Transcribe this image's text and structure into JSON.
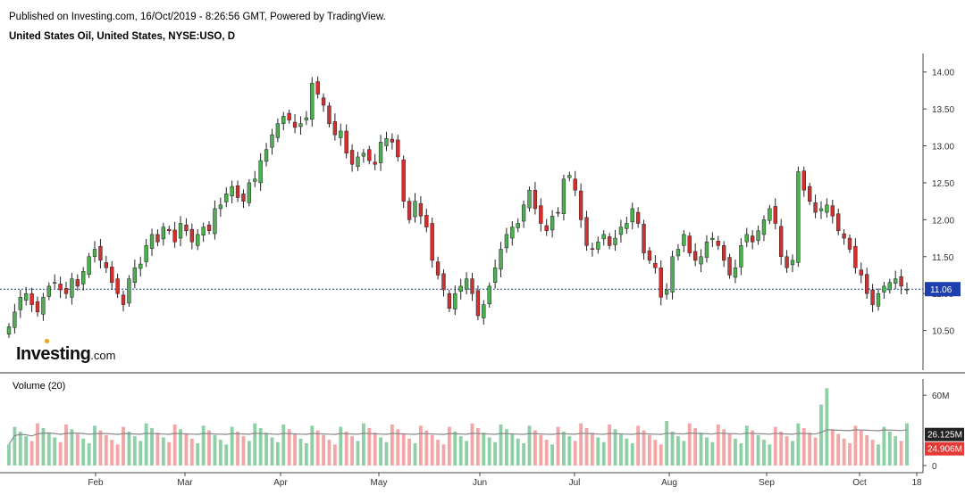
{
  "header": {
    "published": "Published on Investing.com, 16/Oct/2019 - 8:26:56 GMT, Powered by TradingView.",
    "symbol": "United States Oil, United States, NYSE:USO, D"
  },
  "logo": {
    "name": "Investing",
    "tld": ".com"
  },
  "volume": {
    "title": "Volume (20)",
    "ma_label": "26.125M",
    "last_label": "24.906M",
    "axis_ticks": [
      "60M",
      "0"
    ]
  },
  "colors": {
    "up": "#4caf50",
    "down": "#d32f2f",
    "up_vol": "#8fcfa5",
    "down_vol": "#f4a6a6",
    "last_line": "#1e3a8a",
    "last_box": "#1e40af",
    "ma_line": "#888888"
  },
  "chart_data": {
    "type": "candlestick",
    "title": "United States Oil, United States, NYSE:USO, D",
    "price_axis": {
      "ticks": [
        "14.00",
        "13.50",
        "13.00",
        "12.50",
        "12.00",
        "11.50",
        "11.00",
        "10.50"
      ],
      "last_price": "11.06",
      "ylim": [
        10.0,
        14.25
      ]
    },
    "x_ticks": [
      "Feb",
      "Mar",
      "Apr",
      "May",
      "Jun",
      "Jul",
      "Aug",
      "Sep",
      "Oct",
      "18"
    ],
    "close_prices": [
      10.55,
      10.75,
      10.95,
      11.0,
      10.85,
      10.75,
      10.95,
      11.1,
      11.15,
      11.05,
      11.0,
      11.2,
      11.1,
      11.3,
      11.5,
      11.6,
      11.45,
      11.35,
      11.15,
      11.0,
      10.85,
      11.2,
      11.35,
      11.4,
      11.65,
      11.8,
      11.7,
      11.9,
      11.85,
      11.7,
      11.95,
      11.85,
      11.7,
      11.8,
      11.9,
      11.85,
      12.15,
      12.2,
      12.35,
      12.45,
      12.3,
      12.25,
      12.5,
      12.55,
      12.8,
      12.95,
      13.15,
      13.3,
      13.4,
      13.35,
      13.25,
      13.3,
      13.38,
      13.85,
      13.7,
      13.55,
      13.3,
      13.15,
      13.2,
      12.9,
      12.75,
      12.85,
      12.9,
      12.8,
      12.75,
      13.05,
      13.1,
      13.05,
      12.85,
      12.25,
      12.0,
      12.25,
      12.05,
      11.9,
      11.45,
      11.25,
      11.05,
      10.8,
      11.0,
      11.1,
      11.2,
      11.0,
      10.7,
      10.85,
      11.1,
      11.35,
      11.6,
      11.8,
      11.9,
      11.95,
      12.2,
      12.4,
      12.15,
      11.95,
      11.85,
      12.05,
      12.1,
      12.55,
      12.6,
      12.4,
      12.0,
      11.65,
      11.6,
      11.7,
      11.8,
      11.65,
      11.75,
      11.9,
      11.95,
      12.15,
      11.95,
      11.55,
      11.45,
      11.35,
      10.95,
      11.05,
      11.5,
      11.6,
      11.8,
      11.55,
      11.45,
      11.5,
      11.7,
      11.75,
      11.65,
      11.45,
      11.25,
      11.35,
      11.65,
      11.8,
      11.7,
      11.85,
      12.0,
      12.15,
      11.95,
      11.5,
      11.35,
      11.45,
      12.65,
      12.4,
      12.25,
      12.1,
      12.15,
      12.2,
      12.05,
      11.85,
      11.75,
      11.6,
      11.35,
      11.25,
      11.0,
      10.85,
      11.0,
      11.1,
      11.15,
      11.2,
      11.1,
      11.06
    ]
  }
}
